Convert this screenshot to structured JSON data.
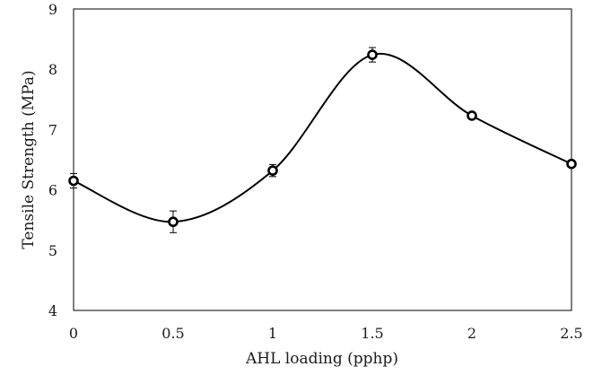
{
  "chart_data": {
    "type": "line",
    "title": "",
    "xlabel": "AHL loading (pphp)",
    "ylabel": "Tensile Strength  (MPa)",
    "x": [
      0,
      0.5,
      1,
      1.5,
      2,
      2.5
    ],
    "x_tick_labels": [
      "0",
      "0.5",
      "1",
      "1.5",
      "2",
      "2.5"
    ],
    "y_tick_labels": [
      "4",
      "5",
      "6",
      "7",
      "8",
      "9"
    ],
    "xlim": [
      0,
      2.5
    ],
    "ylim": [
      4,
      9
    ],
    "series": [
      {
        "values": [
          6.15,
          5.47,
          6.32,
          8.24,
          7.23,
          6.43
        ],
        "error": [
          0.12,
          0.18,
          0.1,
          0.12,
          0.05,
          0.05
        ],
        "color": "#000000",
        "marker": "open-circle",
        "line": "smooth"
      }
    ],
    "grid": false,
    "legend": "none"
  }
}
